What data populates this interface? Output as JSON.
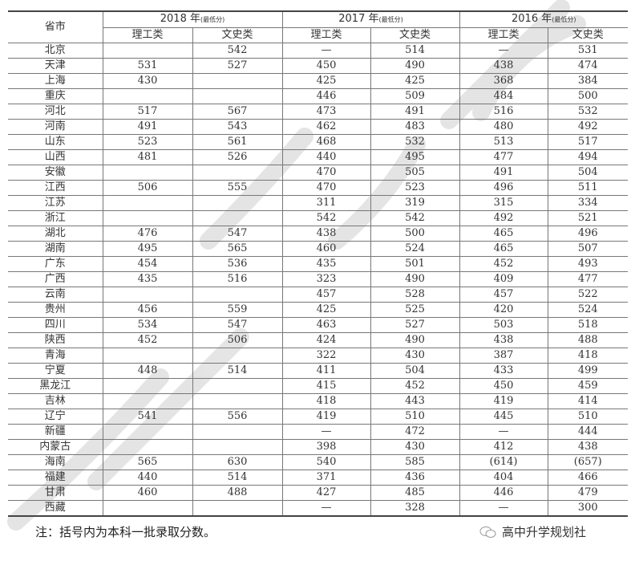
{
  "header": {
    "province_label": "省市",
    "years": [
      {
        "year": "2018 年",
        "note": "(最低分)"
      },
      {
        "year": "2017 年",
        "note": "(最低分)"
      },
      {
        "year": "2016 年",
        "note": "(最低分)"
      }
    ],
    "sub_columns": [
      "理工类",
      "文史类",
      "理工类",
      "文史类",
      "理工类",
      "文史类"
    ]
  },
  "rows": [
    [
      "北京",
      "",
      "542",
      "—",
      "514",
      "—",
      "531"
    ],
    [
      "天津",
      "531",
      "527",
      "450",
      "490",
      "438",
      "474"
    ],
    [
      "上海",
      "430",
      "",
      "425",
      "425",
      "368",
      "384"
    ],
    [
      "重庆",
      "",
      "",
      "446",
      "509",
      "484",
      "500"
    ],
    [
      "河北",
      "517",
      "567",
      "473",
      "491",
      "516",
      "532"
    ],
    [
      "河南",
      "491",
      "543",
      "462",
      "483",
      "480",
      "492"
    ],
    [
      "山东",
      "523",
      "561",
      "468",
      "532",
      "513",
      "517"
    ],
    [
      "山西",
      "481",
      "526",
      "440",
      "495",
      "477",
      "494"
    ],
    [
      "安徽",
      "",
      "",
      "470",
      "505",
      "491",
      "504"
    ],
    [
      "江西",
      "506",
      "555",
      "470",
      "523",
      "496",
      "511"
    ],
    [
      "江苏",
      "",
      "",
      "311",
      "319",
      "315",
      "334"
    ],
    [
      "浙江",
      "",
      "",
      "542",
      "542",
      "492",
      "521"
    ],
    [
      "湖北",
      "476",
      "547",
      "438",
      "500",
      "465",
      "496"
    ],
    [
      "湖南",
      "495",
      "565",
      "460",
      "524",
      "465",
      "507"
    ],
    [
      "广东",
      "454",
      "536",
      "435",
      "501",
      "452",
      "493"
    ],
    [
      "广西",
      "435",
      "516",
      "323",
      "490",
      "409",
      "477"
    ],
    [
      "云南",
      "",
      "",
      "457",
      "528",
      "457",
      "522"
    ],
    [
      "贵州",
      "456",
      "559",
      "425",
      "525",
      "420",
      "524"
    ],
    [
      "四川",
      "534",
      "547",
      "463",
      "527",
      "503",
      "518"
    ],
    [
      "陕西",
      "452",
      "506",
      "424",
      "490",
      "438",
      "488"
    ],
    [
      "青海",
      "",
      "",
      "322",
      "430",
      "387",
      "418"
    ],
    [
      "宁夏",
      "448",
      "514",
      "411",
      "504",
      "433",
      "499"
    ],
    [
      "黑龙江",
      "",
      "",
      "415",
      "452",
      "450",
      "459"
    ],
    [
      "吉林",
      "",
      "",
      "418",
      "443",
      "419",
      "414"
    ],
    [
      "辽宁",
      "541",
      "556",
      "419",
      "510",
      "445",
      "510"
    ],
    [
      "新疆",
      "",
      "",
      "—",
      "472",
      "—",
      "444"
    ],
    [
      "内蒙古",
      "",
      "",
      "398",
      "430",
      "412",
      "438"
    ],
    [
      "海南",
      "565",
      "630",
      "540",
      "585",
      "(614)",
      "(657)"
    ],
    [
      "福建",
      "440",
      "514",
      "371",
      "436",
      "404",
      "466"
    ],
    [
      "甘肃",
      "460",
      "488",
      "427",
      "485",
      "446",
      "479"
    ],
    [
      "西藏",
      "",
      "",
      "—",
      "328",
      "—",
      "300"
    ]
  ],
  "footer": {
    "note": "注：括号内为本科一批录取分数。",
    "brand": "高中升学规划社",
    "brand_icon": "wechat-icon"
  },
  "colors": {
    "watermark": "#d6d6d6",
    "rule": "#444444"
  }
}
